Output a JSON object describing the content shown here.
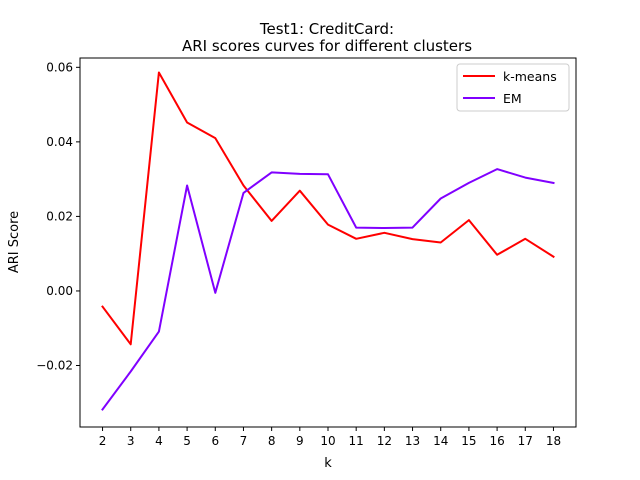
{
  "chart_data": {
    "type": "line",
    "title_line1": "Test1: CreditCard:",
    "title_line2": "ARI scores curves for different clusters",
    "xlabel": "k",
    "ylabel": "ARI Score",
    "x": [
      2,
      3,
      4,
      5,
      6,
      7,
      8,
      9,
      10,
      11,
      12,
      13,
      14,
      15,
      16,
      17,
      18
    ],
    "xlim": [
      1.2,
      18.8
    ],
    "ylim": [
      -0.0365,
      0.0625
    ],
    "yticks": [
      -0.02,
      0.0,
      0.02,
      0.04,
      0.06
    ],
    "ytick_labels": [
      "−0.02",
      "0.00",
      "0.02",
      "0.04",
      "0.06"
    ],
    "grid": false,
    "legend_position": "top-right",
    "series": [
      {
        "name": "k-means",
        "color": "#ff0000",
        "values": [
          -0.0042,
          -0.0143,
          0.0586,
          0.0452,
          0.041,
          0.0283,
          0.0188,
          0.0269,
          0.0178,
          0.014,
          0.0156,
          0.0139,
          0.013,
          0.019,
          0.0097,
          0.014,
          0.0092
        ]
      },
      {
        "name": "EM",
        "color": "#8000ff",
        "values": [
          -0.0318,
          -0.0216,
          -0.0109,
          0.0283,
          -0.0005,
          0.0263,
          0.0318,
          0.0314,
          0.0313,
          0.017,
          0.0169,
          0.017,
          0.0248,
          0.029,
          0.0327,
          0.0304,
          0.029
        ]
      }
    ]
  }
}
